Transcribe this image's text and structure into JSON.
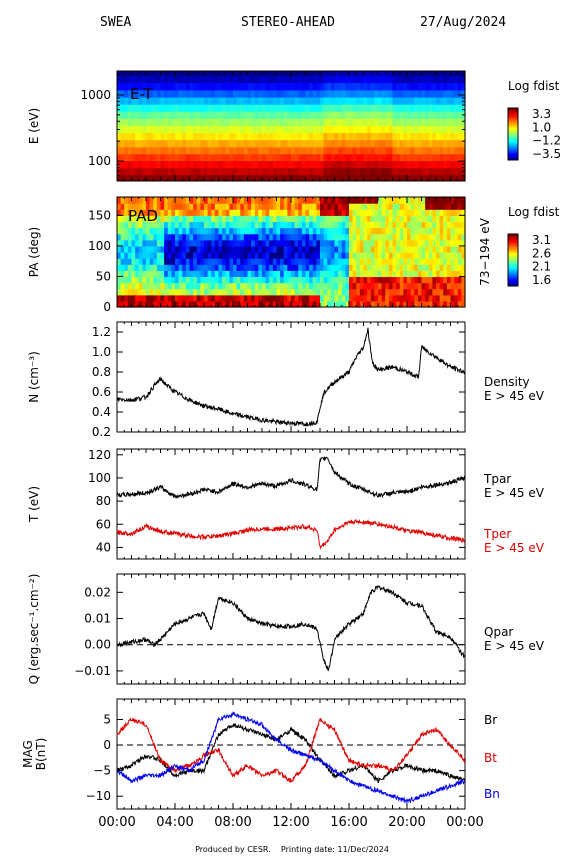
{
  "header": {
    "instrument": "SWEA",
    "spacecraft": "STEREO-AHEAD",
    "date": "27/Aug/2024"
  },
  "footer": {
    "produced_by": "Produced by CESR.",
    "printing": "Printing date: 11/Dec/2024"
  },
  "colors": {
    "black": "#000000",
    "red": "#e00000",
    "blue": "#0000ee"
  },
  "chart_data": [
    {
      "type": "heatmap",
      "id": "energy",
      "panel_label": "E-T",
      "ylabel": "E (eV)",
      "y_scale": "log",
      "ylim": [
        50,
        2300
      ],
      "y_ticks": [
        "100",
        "1000"
      ],
      "colorbar": {
        "title": "Log fdist",
        "ticks": [
          "3.3",
          "1.0",
          "−1.2",
          "−3.5"
        ],
        "range": [
          -3.5,
          3.3
        ]
      },
      "energy_bands": [
        55,
        70,
        90,
        115,
        145,
        185,
        240,
        305,
        390,
        500,
        640,
        820,
        1050,
        1350,
        1750,
        2200
      ],
      "band_log_fdist": [
        3.3,
        2.9,
        2.5,
        2.1,
        1.7,
        1.3,
        0.9,
        0.5,
        0.1,
        -0.3,
        -0.8,
        -1.4,
        -2.0,
        -2.6,
        -3.1,
        -3.5
      ]
    },
    {
      "type": "heatmap",
      "id": "pad",
      "panel_label": "PAD",
      "ylabel": "PA (deg)",
      "right_label": "73−194 eV",
      "ylim": [
        0,
        180
      ],
      "y_ticks": [
        "0",
        "50",
        "100",
        "150"
      ],
      "colorbar": {
        "title": "Log fdist",
        "ticks": [
          "3.1",
          "2.6",
          "2.1",
          "1.6"
        ],
        "range": [
          1.6,
          3.1
        ]
      }
    },
    {
      "type": "line",
      "id": "density",
      "ylabel": "N (cm⁻³)",
      "ylim": [
        0.2,
        1.3
      ],
      "y_ticks": [
        "0.2",
        "0.4",
        "0.6",
        "0.8",
        "1.0",
        "1.2"
      ],
      "series": [
        {
          "name": "Density",
          "sublabel": "E > 45 eV",
          "color": "#000000",
          "x": [
            0,
            1,
            2,
            2.5,
            3,
            3.5,
            4,
            5,
            6,
            7,
            8,
            9,
            10,
            11,
            12,
            13,
            13.8,
            14,
            14.3,
            15,
            16,
            16.5,
            17,
            17.3,
            17.6,
            18,
            19,
            20,
            20.8,
            21,
            22,
            23,
            24
          ],
          "y": [
            0.53,
            0.52,
            0.55,
            0.65,
            0.73,
            0.66,
            0.6,
            0.52,
            0.46,
            0.43,
            0.38,
            0.35,
            0.32,
            0.3,
            0.29,
            0.28,
            0.3,
            0.45,
            0.6,
            0.7,
            0.8,
            0.95,
            1.05,
            1.23,
            0.9,
            0.82,
            0.85,
            0.8,
            0.75,
            1.05,
            0.95,
            0.85,
            0.8
          ]
        }
      ]
    },
    {
      "type": "line",
      "id": "temperature",
      "ylabel": "T (eV)",
      "ylim": [
        30,
        125
      ],
      "y_ticks": [
        "40",
        "60",
        "80",
        "100",
        "120"
      ],
      "series": [
        {
          "name": "Tpar",
          "sublabel": "E > 45 eV",
          "color": "#000000",
          "x": [
            0,
            2,
            3,
            4,
            5,
            6,
            7,
            8,
            9,
            10,
            11,
            12,
            13,
            13.8,
            14,
            14.5,
            15,
            16,
            17,
            18,
            19,
            20,
            21,
            22,
            23,
            24
          ],
          "y": [
            85,
            87,
            92,
            84,
            86,
            90,
            88,
            95,
            92,
            95,
            93,
            98,
            94,
            90,
            115,
            118,
            105,
            95,
            90,
            85,
            87,
            88,
            92,
            94,
            96,
            100
          ]
        },
        {
          "name": "Tper",
          "sublabel": "E > 45 eV",
          "color": "#e00000",
          "x": [
            0,
            1,
            2,
            3,
            4,
            5,
            6,
            7,
            8,
            9,
            10,
            11,
            12,
            13,
            13.8,
            14,
            14.5,
            15,
            16,
            17,
            18,
            19,
            20,
            21,
            22,
            23,
            24
          ],
          "y": [
            53,
            52,
            58,
            54,
            52,
            50,
            49,
            50,
            52,
            55,
            56,
            56,
            57,
            58,
            55,
            40,
            45,
            55,
            62,
            62,
            60,
            58,
            54,
            53,
            50,
            48,
            46
          ]
        }
      ]
    },
    {
      "type": "line",
      "id": "heat_flux",
      "ylabel": "Q (erg.sec⁻¹.cm⁻²)",
      "ylim": [
        -0.015,
        0.027
      ],
      "y_ticks": [
        "−0.01",
        "0.00",
        "0.01",
        "0.02"
      ],
      "zero_line": true,
      "series": [
        {
          "name": "Qpar",
          "sublabel": "E > 45 eV",
          "color": "#000000",
          "x": [
            0,
            1,
            2,
            2.5,
            3,
            4,
            5,
            6,
            6.5,
            7,
            8,
            9,
            10,
            11,
            12,
            13,
            13.8,
            14.2,
            14.6,
            15,
            16,
            17,
            17.5,
            18,
            19,
            20,
            21,
            22,
            23,
            24
          ],
          "y": [
            0.0,
            0.001,
            0.002,
            0.0,
            0.002,
            0.008,
            0.01,
            0.012,
            0.006,
            0.018,
            0.016,
            0.01,
            0.008,
            0.007,
            0.007,
            0.008,
            0.006,
            -0.005,
            -0.01,
            0.002,
            0.008,
            0.012,
            0.02,
            0.022,
            0.02,
            0.016,
            0.015,
            0.005,
            0.003,
            -0.005
          ]
        }
      ]
    },
    {
      "type": "line",
      "id": "mag",
      "ylabel": "MAG B(nT)",
      "ylim": [
        -12.5,
        9
      ],
      "y_ticks": [
        "−10",
        "−5",
        "0",
        "5"
      ],
      "zero_line": true,
      "x_ticks": [
        "00:00",
        "04:00",
        "08:00",
        "12:00",
        "16:00",
        "20:00",
        "00:00"
      ],
      "series": [
        {
          "name": "Br",
          "color": "#000000",
          "x": [
            0,
            1,
            2,
            3,
            4,
            5,
            6,
            7,
            8,
            9,
            10,
            11,
            12,
            13,
            14,
            15,
            16,
            17,
            18,
            19,
            20,
            21,
            22,
            23,
            24
          ],
          "y": [
            -5,
            -4,
            -2,
            -3,
            -6,
            -5,
            -5,
            2,
            4,
            3,
            2,
            1,
            3,
            1,
            -3,
            -6,
            -5,
            -4,
            -7,
            -5,
            -4,
            -5,
            -5,
            -6,
            -7
          ]
        },
        {
          "name": "Bt",
          "color": "#e00000",
          "x": [
            0,
            1,
            2,
            3,
            4,
            5,
            6,
            7,
            8,
            9,
            10,
            11,
            12,
            13,
            14,
            15,
            16,
            17,
            18,
            19,
            20,
            21,
            22,
            23,
            24
          ],
          "y": [
            2,
            5,
            4,
            -3,
            -5,
            -4,
            -2,
            -1,
            -6,
            -4,
            -6,
            -5,
            -7,
            -4,
            5,
            3,
            -3,
            -4,
            -4,
            -5,
            -2,
            2,
            3,
            0,
            -3
          ]
        },
        {
          "name": "Bn",
          "color": "#0000ee",
          "x": [
            0,
            1,
            2,
            3,
            4,
            5,
            6,
            7,
            8,
            9,
            10,
            11,
            12,
            13,
            14,
            15,
            16,
            17,
            18,
            19,
            20,
            21,
            22,
            23,
            24
          ],
          "y": [
            -5,
            -7,
            -6,
            -6,
            -4,
            -5,
            -3,
            5,
            6,
            5,
            4,
            1,
            -1,
            -2,
            -3,
            -5,
            -7,
            -8,
            -9,
            -10,
            -11,
            -10,
            -9,
            -8,
            -7
          ]
        }
      ]
    }
  ]
}
